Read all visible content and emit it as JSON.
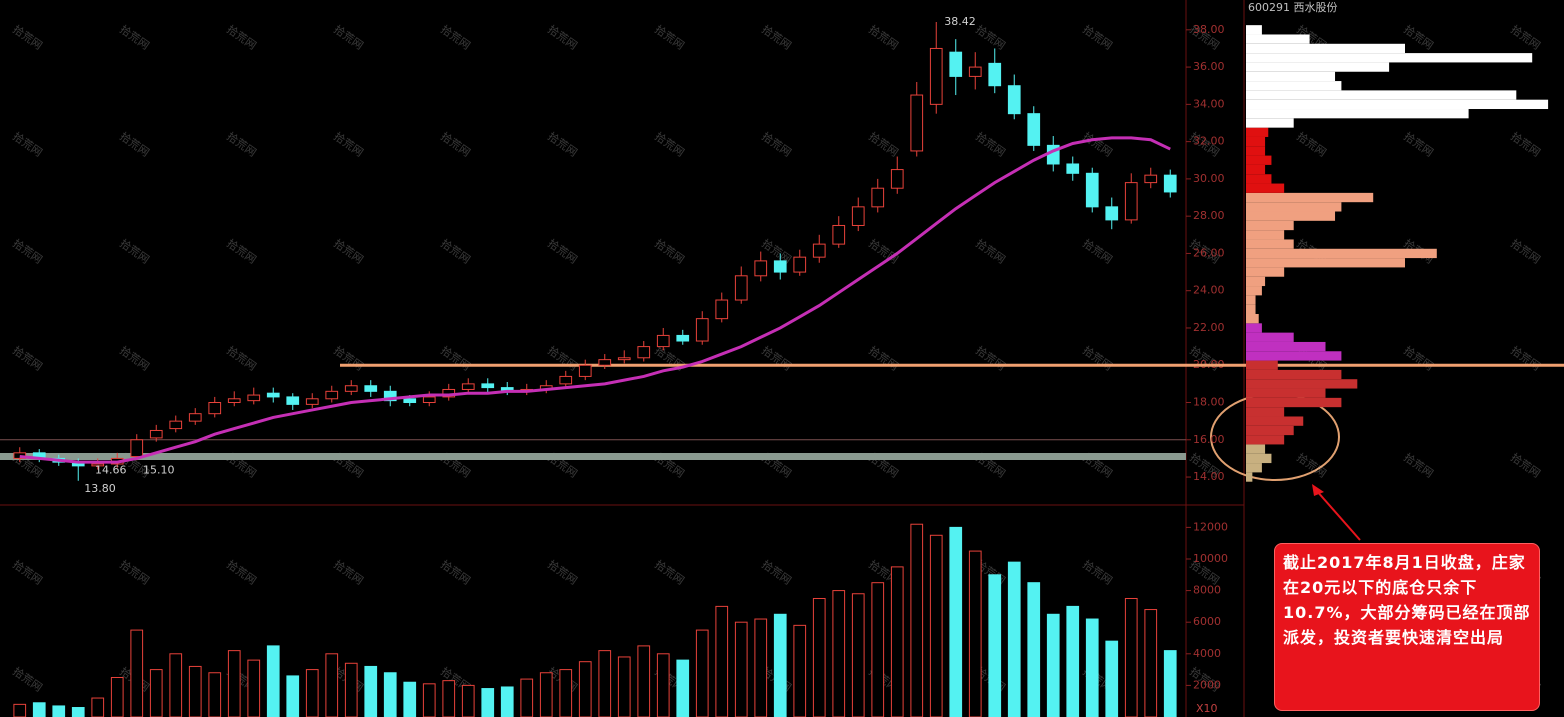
{
  "chart_data": [
    {
      "type": "candlestick",
      "title": "600291 西水股份",
      "open": [
        15.0,
        15.3,
        15.0,
        14.8,
        14.6,
        14.7,
        15.1,
        16.1,
        16.6,
        17.0,
        17.4,
        18.0,
        18.1,
        18.5,
        18.3,
        17.9,
        18.2,
        18.6,
        18.9,
        18.6,
        18.2,
        18.0,
        18.3,
        18.7,
        19.0,
        18.8,
        18.6,
        18.7,
        19.0,
        19.4,
        20.0,
        20.3,
        20.4,
        21.0,
        21.6,
        21.3,
        22.5,
        23.5,
        24.8,
        25.6,
        25.0,
        25.8,
        26.5,
        27.5,
        28.5,
        29.5,
        31.5,
        34.0,
        36.8,
        35.5,
        36.2,
        35.0,
        33.5,
        31.8,
        30.8,
        30.3,
        28.5,
        27.8,
        29.8,
        30.2
      ],
      "high": [
        15.6,
        15.5,
        15.2,
        15.0,
        15.0,
        15.3,
        16.3,
        16.8,
        17.3,
        17.7,
        18.3,
        18.6,
        18.8,
        18.8,
        18.5,
        18.5,
        18.9,
        19.2,
        19.2,
        18.9,
        18.4,
        18.6,
        19.0,
        19.3,
        19.3,
        19.1,
        19.0,
        19.2,
        19.7,
        20.3,
        20.6,
        20.8,
        21.3,
        22.0,
        21.9,
        22.9,
        23.9,
        25.3,
        26.1,
        26.0,
        26.2,
        27.0,
        28.0,
        29.0,
        30.0,
        31.2,
        35.2,
        38.42,
        37.5,
        36.8,
        37.0,
        35.6,
        33.9,
        32.3,
        31.2,
        30.6,
        29.0,
        30.3,
        30.6,
        30.5
      ],
      "low": [
        14.8,
        14.8,
        14.6,
        13.8,
        14.4,
        14.5,
        14.9,
        15.9,
        16.4,
        16.8,
        17.2,
        17.8,
        17.9,
        18.0,
        17.6,
        17.7,
        18.0,
        18.4,
        18.3,
        17.8,
        17.8,
        17.8,
        18.1,
        18.5,
        18.5,
        18.4,
        18.4,
        18.5,
        18.8,
        19.2,
        19.8,
        20.1,
        20.2,
        20.8,
        21.1,
        21.1,
        22.3,
        23.3,
        24.5,
        24.6,
        24.8,
        25.5,
        26.3,
        27.2,
        28.2,
        29.2,
        31.2,
        33.5,
        34.5,
        34.8,
        34.6,
        33.2,
        31.5,
        30.4,
        29.9,
        28.2,
        27.3,
        27.6,
        29.5,
        29.0
      ],
      "close": [
        15.3,
        15.0,
        14.8,
        14.6,
        14.7,
        15.0,
        16.0,
        16.5,
        17.0,
        17.4,
        18.0,
        18.2,
        18.4,
        18.3,
        17.9,
        18.2,
        18.6,
        18.9,
        18.6,
        18.1,
        18.0,
        18.3,
        18.7,
        19.0,
        18.8,
        18.6,
        18.7,
        18.9,
        19.4,
        20.0,
        20.3,
        20.4,
        21.0,
        21.6,
        21.3,
        22.5,
        23.5,
        24.8,
        25.6,
        25.0,
        25.8,
        26.5,
        27.5,
        28.5,
        29.5,
        30.5,
        34.5,
        37.0,
        35.5,
        36.0,
        35.0,
        33.5,
        31.8,
        30.8,
        30.3,
        28.5,
        27.8,
        29.8,
        30.2,
        29.3
      ],
      "up_color": "#e8423a",
      "down_color": "#54f2f2",
      "ylim": [
        12.5,
        39.6
      ],
      "yticks": [
        {
          "value": 14,
          "label": "14.00"
        },
        {
          "value": 16,
          "label": "16.00"
        },
        {
          "value": 18,
          "label": "18.00"
        },
        {
          "value": 20,
          "label": "20.00"
        },
        {
          "value": 22,
          "label": "22.00"
        },
        {
          "value": 24,
          "label": "24.00"
        },
        {
          "value": 26,
          "label": "26.00"
        },
        {
          "value": 28,
          "label": "28.00"
        },
        {
          "value": 30,
          "label": "30.00"
        },
        {
          "value": 32,
          "label": "32.00"
        },
        {
          "value": 34,
          "label": "34.00"
        },
        {
          "value": 36,
          "label": "36.00"
        },
        {
          "value": 38,
          "label": "38.00"
        }
      ],
      "overlay": {
        "color": "#c52fb5",
        "values": [
          15.1,
          15.0,
          14.9,
          14.8,
          14.8,
          14.8,
          15.0,
          15.3,
          15.6,
          15.9,
          16.3,
          16.6,
          16.9,
          17.2,
          17.4,
          17.6,
          17.8,
          18.0,
          18.1,
          18.2,
          18.3,
          18.4,
          18.4,
          18.5,
          18.5,
          18.6,
          18.6,
          18.7,
          18.8,
          18.9,
          19.0,
          19.2,
          19.4,
          19.7,
          19.9,
          20.2,
          20.6,
          21.0,
          21.5,
          22.0,
          22.6,
          23.2,
          23.9,
          24.6,
          25.3,
          26.0,
          26.8,
          27.6,
          28.4,
          29.1,
          29.8,
          30.4,
          31.0,
          31.5,
          31.9,
          32.1,
          32.2,
          32.2,
          32.1,
          31.6
        ]
      },
      "levels": [
        {
          "value": 20,
          "color": "#f0a070"
        },
        {
          "value": 15.1,
          "color": "#8a9a90"
        },
        {
          "value": 16,
          "color": "#7a5050"
        }
      ],
      "annotations": [
        {
          "label": "38.42",
          "value": 38.42
        },
        {
          "label": "13.80",
          "value": 13.8
        },
        {
          "label": "14.66",
          "value": 14.66
        },
        {
          "label": "15.10",
          "value": 15.1
        }
      ],
      "watermark": "拾荒网"
    },
    {
      "type": "volume",
      "values": [
        800,
        900,
        700,
        600,
        1200,
        2500,
        5500,
        3000,
        4000,
        3200,
        2800,
        4200,
        3600,
        4500,
        2600,
        3000,
        4000,
        3400,
        3200,
        2800,
        2200,
        2100,
        2300,
        2000,
        1800,
        1900,
        2400,
        2800,
        3000,
        3500,
        4200,
        3800,
        4500,
        4000,
        3600,
        5500,
        7000,
        6000,
        6200,
        6500,
        5800,
        7500,
        8000,
        7800,
        8500,
        9500,
        12200,
        11500,
        12000,
        10500,
        9000,
        9800,
        8500,
        6500,
        7000,
        6200,
        4800,
        7500,
        6800,
        4200
      ],
      "ylim": [
        0,
        13100
      ],
      "yticks": [
        2000,
        4000,
        6000,
        8000,
        10000,
        12000
      ],
      "unit_label": "X10"
    },
    {
      "type": "profile",
      "prices": [
        14,
        14.5,
        15,
        15.5,
        16,
        16.5,
        17,
        17.5,
        18,
        18.5,
        19,
        19.5,
        20,
        20.5,
        21,
        21.5,
        22,
        22.5,
        23,
        23.5,
        24,
        24.5,
        25,
        25.5,
        26,
        26.5,
        27,
        27.5,
        28,
        28.5,
        29,
        29.5,
        30,
        30.5,
        31,
        31.5,
        32,
        32.5,
        33,
        33.5,
        34,
        34.5,
        35,
        35.5,
        36,
        36.5,
        37,
        37.5,
        38
      ],
      "values": [
        2,
        5,
        8,
        6,
        12,
        15,
        18,
        12,
        30,
        25,
        35,
        30,
        10,
        30,
        25,
        15,
        5,
        4,
        3,
        3,
        5,
        6,
        12,
        50,
        60,
        15,
        12,
        15,
        28,
        30,
        40,
        12,
        8,
        6,
        8,
        6,
        6,
        7,
        15,
        70,
        95,
        85,
        30,
        28,
        45,
        90,
        50,
        20,
        5
      ],
      "xlim": [
        0,
        100
      ],
      "bands": [
        {
          "from": 13.5,
          "color": "#c8b080"
        },
        {
          "from": 16,
          "color": "#c83030"
        },
        {
          "from": 20.25,
          "color": "#c030c0"
        },
        {
          "from": 22.5,
          "color": "#f0a080"
        },
        {
          "from": 29.5,
          "color": "#e01010"
        },
        {
          "from": 33,
          "color": "#ffffff"
        }
      ]
    }
  ],
  "note": "截止2017年8月1日收盘，庄家在20元以下的底仓只余下10.7%，大部分筹码已经在顶部派发，投资者要快速清空出局"
}
